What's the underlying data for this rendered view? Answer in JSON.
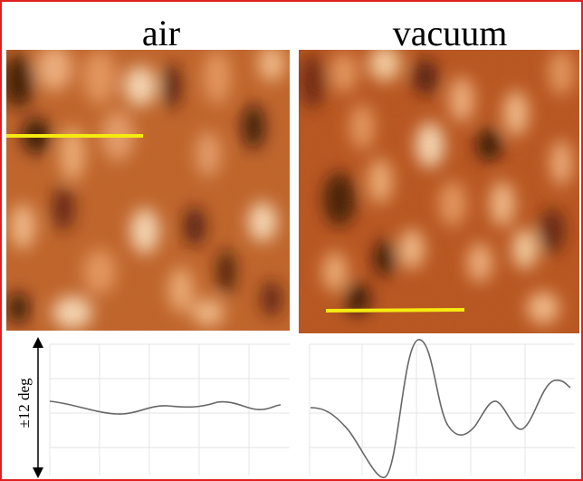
{
  "panels": [
    {
      "title": "air"
    },
    {
      "title": "vacuum"
    }
  ],
  "axis_label": "±12 deg"
}
